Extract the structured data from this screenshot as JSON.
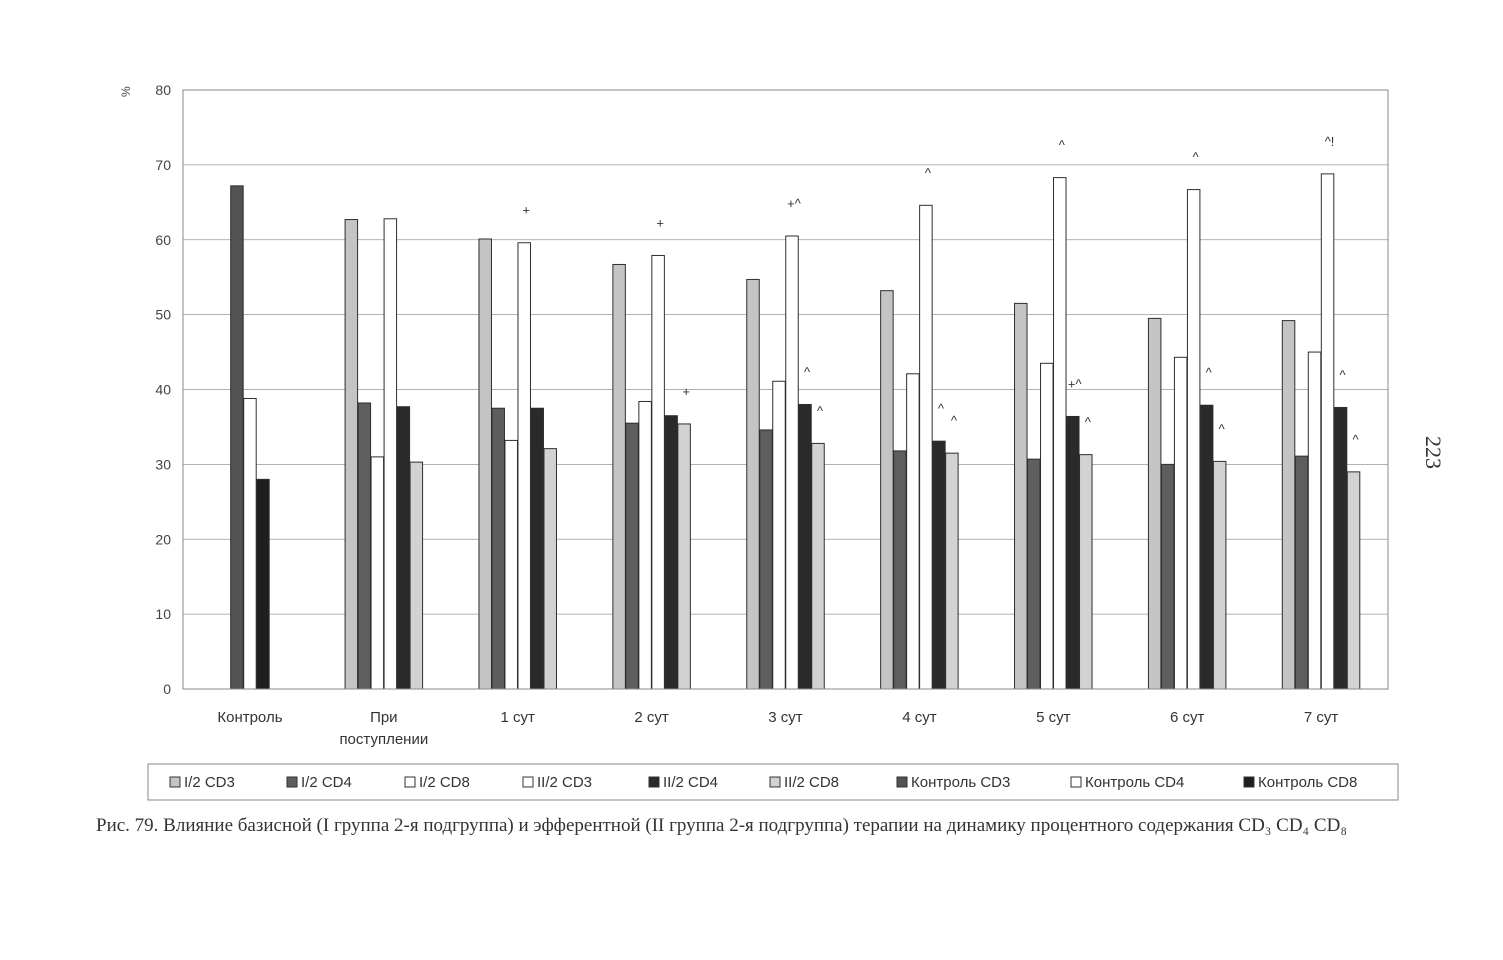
{
  "page": {
    "caption": "Рис. 79. Влияние базисной (I группа 2-я подгруппа) и эфферентной (II группа 2-я подгруппа) терапии на динамику процентного содержания CD₃ CD₄ CD₈",
    "page_number": "223"
  },
  "chart_data": {
    "type": "bar",
    "title": "",
    "xlabel": "",
    "ylabel": "%",
    "ylim": [
      0,
      80
    ],
    "yticks": [
      0,
      10,
      20,
      30,
      40,
      50,
      60,
      70,
      80
    ],
    "grid": true,
    "legend_position": "bottom",
    "categories": [
      "Контроль",
      "При поступлении",
      "1 сут",
      "2 сут",
      "3 сут",
      "4 сут",
      "5 сут",
      "6 сут",
      "7 сут"
    ],
    "category_labels": [
      [
        "Контроль"
      ],
      [
        "При",
        "поступлении"
      ],
      [
        "1 сут"
      ],
      [
        "2 сут"
      ],
      [
        "3 сут"
      ],
      [
        "4 сут"
      ],
      [
        "5 сут"
      ],
      [
        "6 сут"
      ],
      [
        "7 сут"
      ]
    ],
    "series": [
      {
        "name": "I/2 CD3",
        "color": "#c4c4c4",
        "values": [
          null,
          62.7,
          60.1,
          56.7,
          54.7,
          53.2,
          51.5,
          49.5,
          49.2
        ]
      },
      {
        "name": "I/2 CD4",
        "color": "#5e5e5e",
        "values": [
          null,
          38.2,
          37.5,
          35.5,
          34.6,
          31.8,
          30.7,
          30.0,
          31.1
        ]
      },
      {
        "name": "I/2 CD8",
        "color": "#ffffff",
        "values": [
          null,
          31.0,
          33.2,
          38.4,
          41.1,
          42.1,
          43.5,
          44.3,
          45.0
        ]
      },
      {
        "name": "II/2 CD3",
        "color": "#ffffff",
        "values": [
          null,
          62.8,
          59.6,
          57.9,
          60.5,
          64.6,
          68.3,
          66.7,
          68.8
        ]
      },
      {
        "name": "II/2 CD4",
        "color": "#2a2a2a",
        "values": [
          null,
          37.7,
          37.5,
          36.5,
          38.0,
          33.1,
          36.4,
          37.9,
          37.6
        ]
      },
      {
        "name": "II/2 CD8",
        "color": "#d2d2d2",
        "values": [
          null,
          30.3,
          32.1,
          35.4,
          32.8,
          31.5,
          31.3,
          30.4,
          29.0
        ]
      },
      {
        "name": "Контроль CD3",
        "color": "#525252",
        "values": [
          67.2,
          null,
          null,
          null,
          null,
          null,
          null,
          null,
          null
        ]
      },
      {
        "name": "Контроль CD4",
        "color": "#ffffff",
        "values": [
          38.8,
          null,
          null,
          null,
          null,
          null,
          null,
          null,
          null
        ]
      },
      {
        "name": "Контроль CD8",
        "color": "#1e1e1e",
        "values": [
          28.0,
          null,
          null,
          null,
          null,
          null,
          null,
          null,
          null
        ]
      }
    ],
    "annotations": [
      {
        "category": "1 сут",
        "series": "II/2 CD3",
        "text": "+"
      },
      {
        "category": "2 сут",
        "series": "II/2 CD3",
        "text": "+"
      },
      {
        "category": "2 сут",
        "series": "II/2 CD8",
        "text": "+"
      },
      {
        "category": "3 сут",
        "series": "II/2 CD3",
        "text": "+^"
      },
      {
        "category": "3 сут",
        "series": "II/2 CD4",
        "text": "^"
      },
      {
        "category": "3 сут",
        "series": "II/2 CD8",
        "text": "^"
      },
      {
        "category": "4 сут",
        "series": "II/2 CD3",
        "text": "^"
      },
      {
        "category": "4 сут",
        "series": "II/2 CD4",
        "text": "^"
      },
      {
        "category": "4 сут",
        "series": "II/2 CD8",
        "text": "^"
      },
      {
        "category": "5 сут",
        "series": "II/2 CD3",
        "text": "^"
      },
      {
        "category": "5 сут",
        "series": "II/2 CD4",
        "text": "+^"
      },
      {
        "category": "5 сут",
        "series": "II/2 CD8",
        "text": "^"
      },
      {
        "category": "6 сут",
        "series": "II/2 CD3",
        "text": "^"
      },
      {
        "category": "6 сут",
        "series": "II/2 CD4",
        "text": "^"
      },
      {
        "category": "6 сут",
        "series": "II/2 CD8",
        "text": "^"
      },
      {
        "category": "7 сут",
        "series": "II/2 CD3",
        "text": "^!"
      },
      {
        "category": "7 сут",
        "series": "II/2 CD4",
        "text": "^"
      },
      {
        "category": "7 сут",
        "series": "II/2 CD8",
        "text": "^"
      }
    ]
  }
}
